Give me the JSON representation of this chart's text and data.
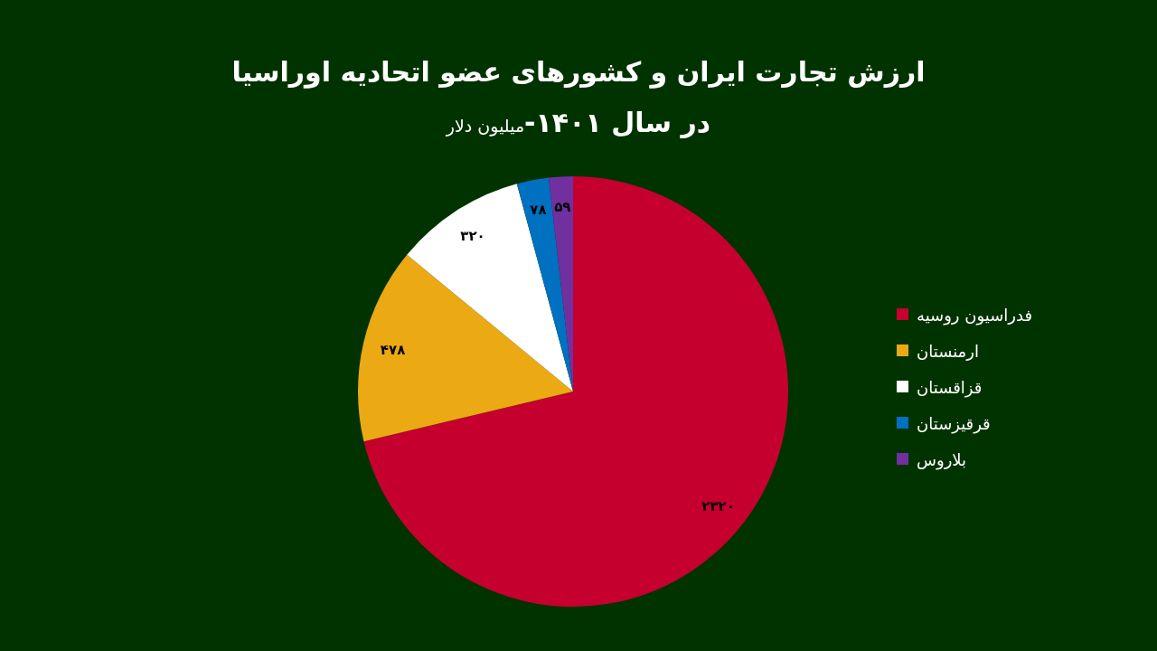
{
  "chart_data": {
    "type": "pie",
    "title": "ارزش تجارت ایران و کشورهای عضو اتحادیه اوراسیا\nدر سال ۱۴۰۱-",
    "subtitle": "میلیون دلار",
    "categories": [
      "فدراسیون روسیه",
      "ارمنستان",
      "قزاقستان",
      "قرقیزستان",
      "بلاروس"
    ],
    "values": [
      2320,
      478,
      320,
      78,
      59
    ],
    "value_labels": [
      "۲۳۲۰",
      "۴۷۸",
      "۳۲۰",
      "۷۸",
      "۵۹"
    ],
    "colors": [
      "#c5002e",
      "#eba914",
      "#ffffff",
      "#0070c0",
      "#7030a0"
    ],
    "legend": "right"
  }
}
